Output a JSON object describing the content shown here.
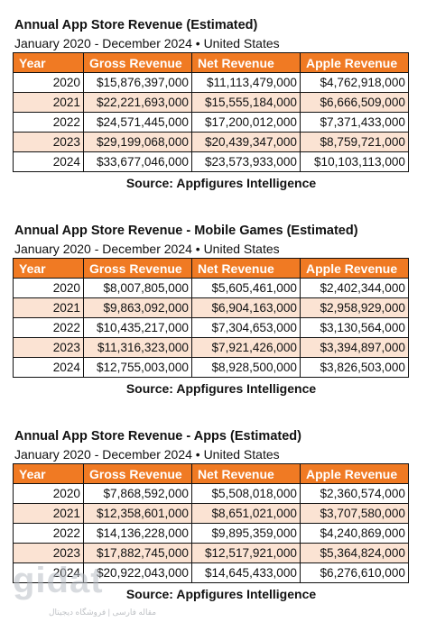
{
  "tables": [
    {
      "title": "Annual App Store Revenue (Estimated)",
      "subtitle": "January 2020 - December 2024 • United States",
      "headers": [
        "Year",
        "Gross Revenue",
        "Net Revenue",
        "Apple Revenue"
      ],
      "rows": [
        [
          "2020",
          "$15,876,397,000",
          "$11,113,479,000",
          "$4,762,918,000"
        ],
        [
          "2021",
          "$22,221,693,000",
          "$15,555,184,000",
          "$6,666,509,000"
        ],
        [
          "2022",
          "$24,571,445,000",
          "$17,200,012,000",
          "$7,371,433,000"
        ],
        [
          "2023",
          "$29,199,068,000",
          "$20,439,347,000",
          "$8,759,721,000"
        ],
        [
          "2024",
          "$33,677,046,000",
          "$23,573,933,000",
          "$10,103,113,000"
        ]
      ],
      "source": "Source: Appfigures Intelligence"
    },
    {
      "title": "Annual App Store Revenue - Mobile Games (Estimated)",
      "subtitle": "January 2020 - December 2024 • United States",
      "headers": [
        "Year",
        "Gross Revenue",
        "Net Revenue",
        "Apple Revenue"
      ],
      "rows": [
        [
          "2020",
          "$8,007,805,000",
          "$5,605,461,000",
          "$2,402,344,000"
        ],
        [
          "2021",
          "$9,863,092,000",
          "$6,904,163,000",
          "$2,958,929,000"
        ],
        [
          "2022",
          "$10,435,217,000",
          "$7,304,653,000",
          "$3,130,564,000"
        ],
        [
          "2023",
          "$11,316,323,000",
          "$7,921,426,000",
          "$3,394,897,000"
        ],
        [
          "2024",
          "$12,755,003,000",
          "$8,928,500,000",
          "$3,826,503,000"
        ]
      ],
      "source": "Source: Appfigures Intelligence"
    },
    {
      "title": "Annual App Store Revenue - Apps (Estimated)",
      "subtitle": "January 2020 - December 2024 • United States",
      "headers": [
        "Year",
        "Gross Revenue",
        "Net Revenue",
        "Apple Revenue"
      ],
      "rows": [
        [
          "2020",
          "$7,868,592,000",
          "$5,508,018,000",
          "$2,360,574,000"
        ],
        [
          "2021",
          "$12,358,601,000",
          "$8,651,021,000",
          "$3,707,580,000"
        ],
        [
          "2022",
          "$14,136,228,000",
          "$9,895,359,000",
          "$4,240,869,000"
        ],
        [
          "2023",
          "$17,882,745,000",
          "$12,517,921,000",
          "$5,364,824,000"
        ],
        [
          "2024",
          "$20,922,043,000",
          "$14,645,433,000",
          "$6,276,610,000"
        ]
      ],
      "source": "Source: Appfigures Intelligence"
    }
  ],
  "watermark": {
    "logo": "gidat",
    "tagline": "مقاله فارسی | فروشگاه دیجیتال"
  },
  "colors": {
    "header_bg": "#f07a23",
    "header_text": "#ffffff",
    "stripe_row": "#fbe3d3",
    "border": "#111111"
  }
}
